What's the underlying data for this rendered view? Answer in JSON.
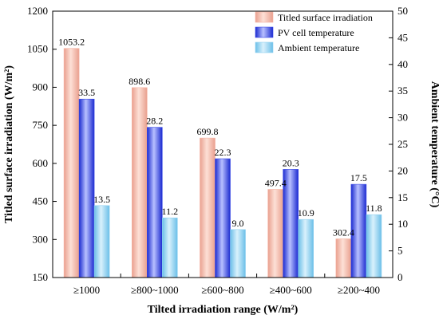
{
  "chart_data": {
    "type": "bar",
    "xlabel": "Tilted irradiation range (W/m²)",
    "ylabel_left": "Titled surface irradiation (W/m²)",
    "ylabel_right": "Ambient temperature (°C)",
    "categories": [
      "≥1000",
      "≥800~1000",
      "≥600~800",
      "≥400~600",
      "≥200~400"
    ],
    "ylim_left": [
      150,
      1200
    ],
    "yticks_left": [
      150,
      300,
      450,
      600,
      750,
      900,
      1050,
      1200
    ],
    "ylim_right": [
      0,
      50
    ],
    "yticks_right": [
      0,
      5,
      10,
      15,
      20,
      25,
      30,
      35,
      40,
      45,
      50
    ],
    "legend_position": "top-right",
    "grid": false,
    "series": [
      {
        "name": "Titled surface irradiation",
        "axis": "left",
        "color": "#f7b3a3",
        "values": [
          1053.2,
          898.6,
          699.8,
          497.4,
          302.4
        ],
        "labels": [
          "1053.2",
          "898.6",
          "699.8",
          "497.4",
          "302.4"
        ]
      },
      {
        "name": "PV cell temperature",
        "axis": "right",
        "color": "#3a49e6",
        "values": [
          33.5,
          28.2,
          22.3,
          20.3,
          17.5
        ],
        "labels": [
          "33.5",
          "28.2",
          "22.3",
          "20.3",
          "17.5"
        ]
      },
      {
        "name": "Ambient temperature",
        "axis": "right",
        "color": "#8fd0f0",
        "values": [
          13.5,
          11.2,
          9.0,
          10.9,
          11.8
        ],
        "labels": [
          "13.5",
          "11.2",
          "9.0",
          "10.9",
          "11.8"
        ]
      }
    ]
  }
}
